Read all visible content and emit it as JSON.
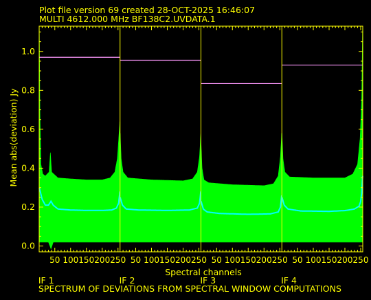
{
  "header": {
    "line1": "Plot file version 69  created 28-OCT-2025 16:46:07",
    "line2": "MULTI 4612.000 MHz  BF138C2.UVDATA.1"
  },
  "footer": {
    "caption": "SPECTRUM OF DEVIATIONS FROM SPECTRAL WINDOW COMPUTATIONS"
  },
  "colors": {
    "background": "#000000",
    "frame": "#ffff00",
    "text": "#ffff00",
    "band": "#00ff00",
    "mean": "#00ffff",
    "rms_level": "#ff99ff"
  },
  "chart_data": {
    "type": "line",
    "xlabel": "Spectral channels",
    "ylabel": "Mean abs(deviation) Jy",
    "ylim": [
      -0.03,
      1.13
    ],
    "yticks": [
      0.0,
      0.2,
      0.4,
      0.6,
      0.8,
      1.0
    ],
    "ytick_labels": [
      "0.0",
      "0.2",
      "0.4",
      "0.6",
      "0.8",
      "1.0"
    ],
    "channels_per_window": 256,
    "xticks": [
      50,
      100,
      150,
      200,
      250
    ],
    "xtick_labels": [
      "50",
      "100",
      "150",
      "200",
      "250"
    ],
    "grid": false,
    "windows": [
      {
        "label": "IF 1",
        "level": 0.97,
        "mean": [
          [
            1,
            0.3
          ],
          [
            10,
            0.24
          ],
          [
            20,
            0.21
          ],
          [
            30,
            0.21
          ],
          [
            38,
            0.23
          ],
          [
            45,
            0.21
          ],
          [
            60,
            0.19
          ],
          [
            100,
            0.185
          ],
          [
            150,
            0.183
          ],
          [
            200,
            0.183
          ],
          [
            230,
            0.185
          ],
          [
            245,
            0.195
          ],
          [
            252,
            0.22
          ],
          [
            256,
            0.28
          ]
        ],
        "band_upper": [
          [
            1,
            1.13
          ],
          [
            3,
            0.7
          ],
          [
            6,
            0.42
          ],
          [
            12,
            0.37
          ],
          [
            20,
            0.36
          ],
          [
            32,
            0.38
          ],
          [
            36,
            0.48
          ],
          [
            40,
            0.38
          ],
          [
            60,
            0.35
          ],
          [
            100,
            0.345
          ],
          [
            150,
            0.34
          ],
          [
            200,
            0.34
          ],
          [
            225,
            0.35
          ],
          [
            240,
            0.38
          ],
          [
            248,
            0.45
          ],
          [
            253,
            0.57
          ],
          [
            256,
            0.64
          ]
        ],
        "band_lower": [
          [
            1,
            0.02
          ],
          [
            30,
            0.02
          ],
          [
            38,
            -0.015
          ],
          [
            45,
            0.02
          ],
          [
            256,
            0.02
          ]
        ]
      },
      {
        "label": "IF 2",
        "level": 0.955,
        "mean": [
          [
            1,
            0.25
          ],
          [
            8,
            0.21
          ],
          [
            20,
            0.19
          ],
          [
            60,
            0.185
          ],
          [
            150,
            0.183
          ],
          [
            220,
            0.185
          ],
          [
            245,
            0.195
          ],
          [
            252,
            0.22
          ],
          [
            256,
            0.28
          ]
        ],
        "band_upper": [
          [
            1,
            0.58
          ],
          [
            4,
            0.45
          ],
          [
            10,
            0.38
          ],
          [
            25,
            0.35
          ],
          [
            100,
            0.34
          ],
          [
            200,
            0.335
          ],
          [
            230,
            0.345
          ],
          [
            245,
            0.38
          ],
          [
            252,
            0.46
          ],
          [
            256,
            0.58
          ]
        ],
        "band_lower": [
          [
            1,
            0.02
          ],
          [
            256,
            0.02
          ]
        ]
      },
      {
        "label": "IF 3",
        "level": 0.835,
        "mean": [
          [
            1,
            0.23
          ],
          [
            8,
            0.19
          ],
          [
            20,
            0.175
          ],
          [
            60,
            0.167
          ],
          [
            150,
            0.163
          ],
          [
            220,
            0.165
          ],
          [
            245,
            0.175
          ],
          [
            252,
            0.2
          ],
          [
            256,
            0.26
          ]
        ],
        "band_upper": [
          [
            1,
            0.52
          ],
          [
            4,
            0.4
          ],
          [
            10,
            0.34
          ],
          [
            25,
            0.325
          ],
          [
            100,
            0.315
          ],
          [
            200,
            0.31
          ],
          [
            230,
            0.32
          ],
          [
            245,
            0.36
          ],
          [
            252,
            0.46
          ],
          [
            256,
            0.58
          ]
        ],
        "band_lower": [
          [
            1,
            0.02
          ],
          [
            256,
            0.02
          ]
        ]
      },
      {
        "label": "IF 4",
        "level": 0.93,
        "mean": [
          [
            1,
            0.25
          ],
          [
            8,
            0.21
          ],
          [
            20,
            0.19
          ],
          [
            60,
            0.18
          ],
          [
            150,
            0.178
          ],
          [
            200,
            0.182
          ],
          [
            230,
            0.19
          ],
          [
            245,
            0.205
          ],
          [
            250,
            0.23
          ],
          [
            253,
            0.27
          ],
          [
            256,
            0.36
          ]
        ],
        "band_upper": [
          [
            1,
            0.58
          ],
          [
            4,
            0.45
          ],
          [
            10,
            0.38
          ],
          [
            25,
            0.355
          ],
          [
            100,
            0.35
          ],
          [
            200,
            0.35
          ],
          [
            225,
            0.37
          ],
          [
            240,
            0.42
          ],
          [
            248,
            0.55
          ],
          [
            253,
            0.75
          ],
          [
            256,
            1.13
          ]
        ],
        "band_lower": [
          [
            1,
            0.02
          ],
          [
            256,
            0.02
          ]
        ]
      }
    ]
  }
}
